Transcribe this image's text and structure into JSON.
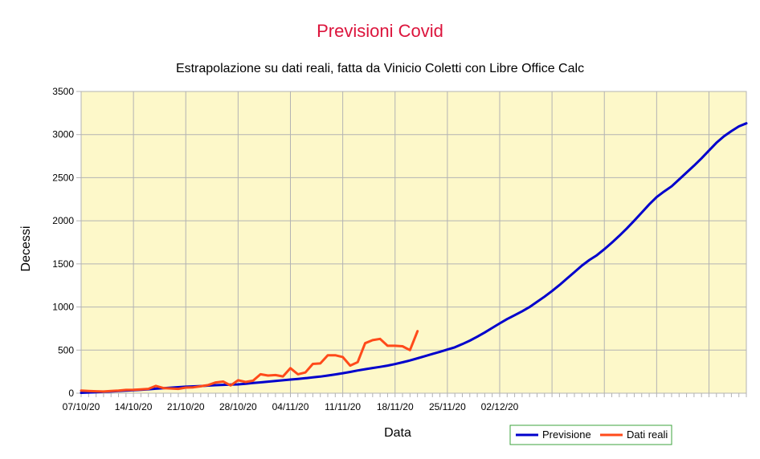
{
  "colors": {
    "plot_background": "#fdf8c9",
    "grid": "#b3b3b3",
    "title": "#dc143c",
    "previsione": "#0000cc",
    "dati_reali": "#ff4a1a",
    "legend_border": "#3ca33c"
  },
  "chart_data": {
    "type": "line",
    "title": "Previsioni Covid",
    "subtitle": "Estrapolazione su dati reali, fatta da Vinicio Coletti con Libre Office Calc",
    "xlabel": "Data",
    "ylabel": "Decessi",
    "ylim": [
      0,
      3500
    ],
    "yticks": [
      0,
      500,
      1000,
      1500,
      2000,
      2500,
      3000,
      3500
    ],
    "x_start": "07/10/20",
    "x_days": 89,
    "xtick_labels": [
      "07/10/20",
      "14/10/20",
      "21/10/20",
      "28/10/20",
      "04/11/20",
      "11/11/20",
      "18/11/20",
      "25/11/20",
      "02/12/20"
    ],
    "grid": true,
    "legend_position": "bottom-right",
    "series": [
      {
        "name": "Previsione",
        "color": "#0000cc",
        "values": [
          5,
          8,
          12,
          16,
          20,
          25,
          30,
          35,
          40,
          46,
          52,
          58,
          64,
          70,
          75,
          79,
          83,
          88,
          93,
          97,
          100,
          102,
          110,
          118,
          126,
          134,
          142,
          150,
          158,
          166,
          174,
          183,
          193,
          205,
          218,
          232,
          247,
          263,
          278,
          292,
          305,
          320,
          338,
          358,
          380,
          405,
          430,
          455,
          480,
          506,
          532,
          570,
          610,
          655,
          705,
          758,
          810,
          860,
          905,
          950,
          1000,
          1060,
          1120,
          1185,
          1255,
          1330,
          1405,
          1480,
          1545,
          1600,
          1670,
          1745,
          1825,
          1910,
          2000,
          2095,
          2190,
          2275,
          2340,
          2400,
          2480,
          2560,
          2640,
          2725,
          2815,
          2905,
          2980,
          3040,
          3095,
          3130
        ]
      },
      {
        "name": "Dati reali",
        "color": "#ff4a1a",
        "values": [
          30,
          25,
          22,
          20,
          25,
          30,
          38,
          40,
          45,
          50,
          85,
          60,
          55,
          50,
          65,
          68,
          80,
          95,
          125,
          135,
          90,
          150,
          130,
          145,
          220,
          205,
          210,
          195,
          290,
          220,
          240,
          340,
          345,
          440,
          440,
          420,
          320,
          360,
          580,
          615,
          630,
          550,
          550,
          545,
          500,
          720
        ]
      }
    ]
  }
}
